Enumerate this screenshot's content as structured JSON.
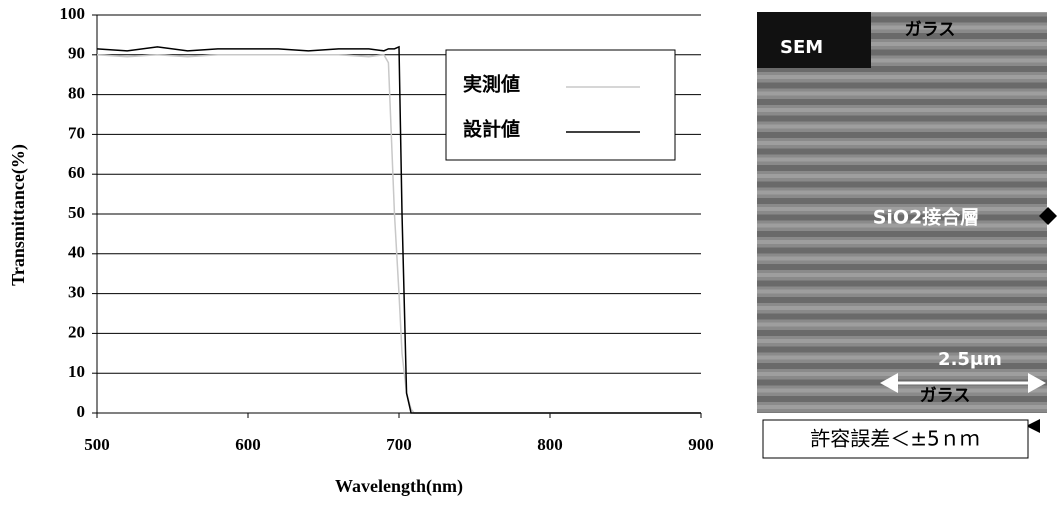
{
  "chart_data": {
    "type": "line",
    "xlabel": "Wavelength(nm)",
    "ylabel": "Transmittance(%)",
    "x": [
      500,
      520,
      540,
      560,
      580,
      600,
      620,
      640,
      660,
      680,
      690,
      693,
      697,
      700,
      702,
      705,
      708,
      710,
      750,
      800,
      850,
      900
    ],
    "series": [
      {
        "name": "実測値",
        "color": "#c8c8c8",
        "values": [
          90,
          89.5,
          90,
          89.5,
          90,
          90,
          90,
          90,
          90,
          89.5,
          90,
          88,
          50,
          30,
          15,
          5,
          1,
          0,
          0,
          0,
          0,
          0
        ]
      },
      {
        "name": "設計値",
        "color": "#000000",
        "values": [
          91.5,
          91,
          92,
          91,
          91.5,
          91.5,
          91.5,
          91,
          91.5,
          91.5,
          91,
          91.5,
          91.5,
          92,
          50,
          5,
          0,
          0,
          0,
          0,
          0,
          0
        ]
      }
    ],
    "xlim": [
      500,
      900
    ],
    "xticks": [
      500,
      600,
      700,
      800,
      900
    ],
    "ylim": [
      0,
      100
    ],
    "yticks": [
      0,
      10,
      20,
      30,
      40,
      50,
      60,
      70,
      80,
      90,
      100
    ],
    "grid": true
  },
  "sem_image": {
    "badge": "SEM",
    "top_label": "ガラス",
    "layer_label": "SiO2接合層",
    "scale_label": "2.5μm",
    "bottom_label": "ガラス",
    "tolerance": "許容誤差＜±5ｎｍ"
  }
}
